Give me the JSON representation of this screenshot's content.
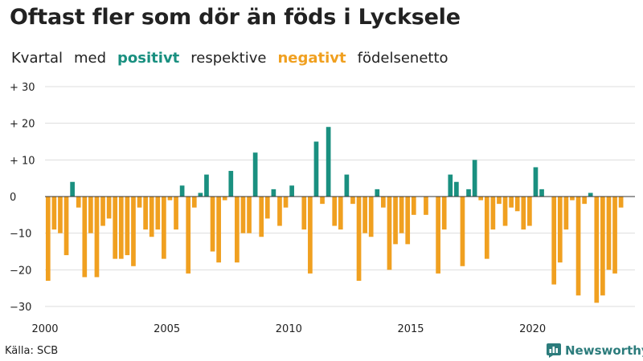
{
  "header": {
    "title": "Oftast fler som dör än föds i Lycksele",
    "subtitle_parts": [
      "Kvartal",
      "med",
      "positivt",
      "respektive",
      "negativt",
      "födelsenetto"
    ]
  },
  "footer": {
    "source": "Källa: SCB",
    "brand": "Newsworthy"
  },
  "colors": {
    "positive": "#1a9080",
    "negative": "#f0a020",
    "grid": "#dddddd",
    "brand": "#2c7c7c"
  },
  "chart_data": {
    "type": "bar",
    "title": "Oftast fler som dör än föds i Lycksele",
    "subtitle": "Kvartal med positivt respektive negativt födelsenetto",
    "xlabel": "",
    "ylabel": "",
    "x_start": 2000,
    "periods_per_year": 4,
    "xlim": [
      2000,
      2024
    ],
    "ylim": [
      -32,
      30
    ],
    "yticks": [
      30,
      20,
      10,
      0,
      -10,
      -20,
      -30
    ],
    "ytick_labels": [
      "+ 30",
      "+ 20",
      "+ 10",
      "0",
      "−10",
      "−20",
      "−30"
    ],
    "xticks": [
      2000,
      2005,
      2010,
      2015,
      2020
    ],
    "xtick_labels": [
      "2000",
      "2005",
      "2010",
      "2015",
      "2020"
    ],
    "grid": true,
    "values": [
      -23,
      -9,
      -10,
      -16,
      4,
      -3,
      -22,
      -10,
      -22,
      -8,
      -6,
      -17,
      -17,
      -16,
      -19,
      -3,
      -9,
      -11,
      -9,
      -17,
      -1,
      -9,
      3,
      -21,
      -3,
      1,
      6,
      -15,
      -18,
      -1,
      7,
      -18,
      -10,
      -10,
      12,
      -11,
      -6,
      2,
      -8,
      -3,
      3,
      0,
      -9,
      -21,
      15,
      -2,
      19,
      -8,
      -9,
      6,
      -2,
      -23,
      -10,
      -11,
      2,
      -3,
      -20,
      -13,
      -10,
      -13,
      -5,
      0,
      -5,
      0,
      -21,
      -9,
      6,
      4,
      -19,
      2,
      10,
      -1,
      -17,
      -9,
      -2,
      -8,
      -3,
      -4,
      -9,
      -8,
      8,
      2,
      0,
      -24,
      -18,
      -9,
      -1,
      -27,
      -2,
      1,
      -29,
      -27,
      -20,
      -21,
      -3
    ]
  }
}
